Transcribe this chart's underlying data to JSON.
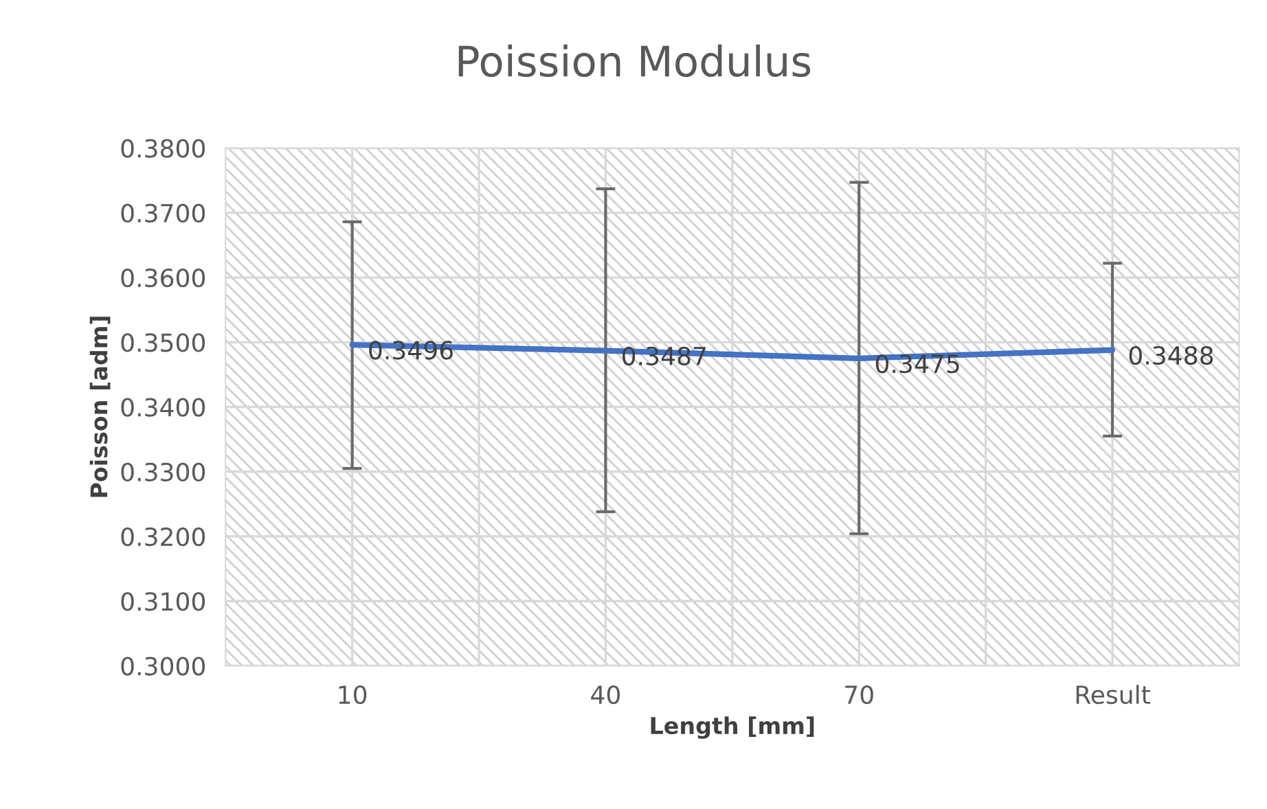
{
  "chart_data": {
    "type": "line",
    "title": "Poission Modulus",
    "xlabel": "Length [mm]",
    "ylabel": "Poisson [adm]",
    "categories": [
      "10",
      "40",
      "70",
      "Result"
    ],
    "series": [
      {
        "color": "#4472c4",
        "values": [
          0.3496,
          0.3487,
          0.3475,
          0.3488
        ],
        "errors": [
          [
            0.3305,
            0.3686
          ],
          [
            0.3238,
            0.3737
          ],
          [
            0.3204,
            0.3747
          ],
          [
            0.3355,
            0.3622
          ]
        ]
      }
    ],
    "data_labels": true,
    "ylim": [
      0.3,
      0.38
    ],
    "yticks": [
      {
        "value": 0.3,
        "label": "0.3000"
      },
      {
        "value": 0.31,
        "label": "0.3100"
      },
      {
        "value": 0.32,
        "label": "0.3200"
      },
      {
        "value": 0.33,
        "label": "0.3300"
      },
      {
        "value": 0.34,
        "label": "0.3400"
      },
      {
        "value": 0.35,
        "label": "0.3500"
      },
      {
        "value": 0.36,
        "label": "0.3600"
      },
      {
        "value": 0.37,
        "label": "0.3700"
      },
      {
        "value": 0.38,
        "label": "0.3800"
      }
    ],
    "grid": true,
    "marker": "none",
    "line_style": "solid"
  }
}
